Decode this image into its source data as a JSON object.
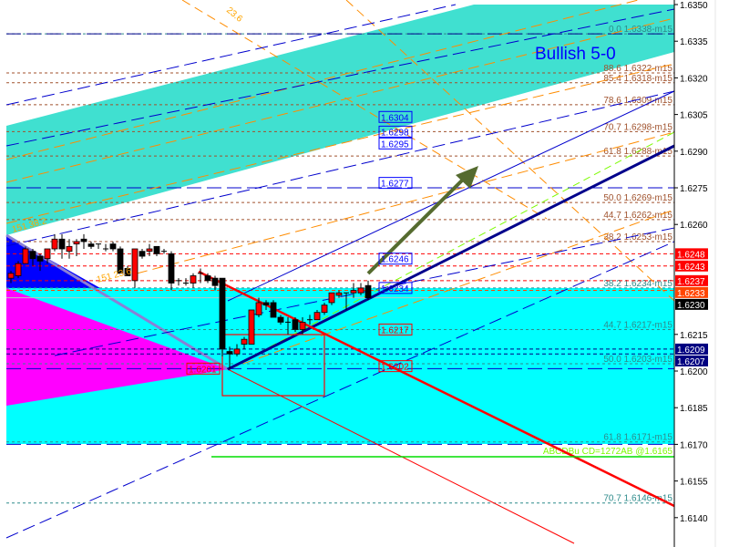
{
  "chart_data": {
    "type": "candlestick",
    "title": "Bullish 5-0",
    "ylim": [
      1.6132,
      1.6352
    ],
    "y_ticks": [
      "1.6350",
      "1.6335",
      "1.6320",
      "1.6305",
      "1.6290",
      "1.6275",
      "1.6260",
      "1.6215",
      "1.6200",
      "1.6185",
      "1.6170",
      "1.6155",
      "1.6140"
    ],
    "candles_ohlc": [
      [
        1.6238,
        1.6241,
        1.6236,
        1.624
      ],
      [
        1.6239,
        1.6245,
        1.6238,
        1.6244
      ],
      [
        1.6244,
        1.6251,
        1.6244,
        1.625
      ],
      [
        1.6249,
        1.625,
        1.6243,
        1.6246
      ],
      [
        1.6247,
        1.6248,
        1.6241,
        1.6245
      ],
      [
        1.6246,
        1.625,
        1.6244,
        1.625
      ],
      [
        1.625,
        1.6256,
        1.6249,
        1.6254
      ],
      [
        1.6254,
        1.6256,
        1.6246,
        1.625
      ],
      [
        1.6249,
        1.6254,
        1.6246,
        1.6251
      ],
      [
        1.6252,
        1.6254,
        1.6247,
        1.6253
      ],
      [
        1.6254,
        1.6256,
        1.625,
        1.6253
      ],
      [
        1.6252,
        1.6253,
        1.625,
        1.6251
      ],
      [
        1.6252,
        1.6252,
        1.625,
        1.6252
      ],
      [
        1.625,
        1.6252,
        1.6249,
        1.625
      ],
      [
        1.6252,
        1.6253,
        1.6249,
        1.625
      ],
      [
        1.625,
        1.6251,
        1.624,
        1.624
      ],
      [
        1.6242,
        1.6243,
        1.6239,
        1.6239
      ],
      [
        1.6237,
        1.625,
        1.6234,
        1.625
      ],
      [
        1.6249,
        1.625,
        1.6246,
        1.6247
      ],
      [
        1.6249,
        1.6252,
        1.6247,
        1.625
      ],
      [
        1.6251,
        1.6251,
        1.6247,
        1.6248
      ],
      [
        1.6249,
        1.625,
        1.6248,
        1.6249
      ],
      [
        1.6248,
        1.6249,
        1.6233,
        1.6236
      ],
      [
        1.6237,
        1.6238,
        1.6235,
        1.6237
      ],
      [
        1.6236,
        1.6238,
        1.6235,
        1.6236
      ],
      [
        1.6236,
        1.624,
        1.6234,
        1.6239
      ],
      [
        1.624,
        1.6242,
        1.6236,
        1.624
      ],
      [
        1.6239,
        1.624,
        1.6236,
        1.6237
      ],
      [
        1.6238,
        1.6239,
        1.6233,
        1.6235
      ],
      [
        1.6238,
        1.6238,
        1.6206,
        1.6209
      ],
      [
        1.6208,
        1.621,
        1.6201,
        1.6207
      ],
      [
        1.6207,
        1.6211,
        1.6206,
        1.6209
      ],
      [
        1.6211,
        1.6214,
        1.6209,
        1.6213
      ],
      [
        1.6211,
        1.6225,
        1.6211,
        1.6225
      ],
      [
        1.6223,
        1.623,
        1.6222,
        1.6228
      ],
      [
        1.6228,
        1.6229,
        1.6225,
        1.6227
      ],
      [
        1.6228,
        1.6229,
        1.6222,
        1.6222
      ],
      [
        1.6222,
        1.6223,
        1.6219,
        1.622
      ],
      [
        1.622,
        1.6222,
        1.6215,
        1.622
      ],
      [
        1.6221,
        1.6222,
        1.6216,
        1.6217
      ],
      [
        1.6217,
        1.6222,
        1.6215,
        1.622
      ],
      [
        1.6221,
        1.6223,
        1.6219,
        1.6221
      ],
      [
        1.6221,
        1.6225,
        1.6221,
        1.6224
      ],
      [
        1.6224,
        1.6228,
        1.6223,
        1.6227
      ],
      [
        1.6228,
        1.6232,
        1.6227,
        1.6232
      ],
      [
        1.6231,
        1.6233,
        1.623,
        1.6232
      ],
      [
        1.6232,
        1.6232,
        1.6225,
        1.6232
      ],
      [
        1.6232,
        1.6236,
        1.623,
        1.6233
      ],
      [
        1.6232,
        1.6236,
        1.6231,
        1.6234
      ],
      [
        1.6235,
        1.6237,
        1.6229,
        1.623
      ]
    ],
    "fib_levels": [
      {
        "price": 1.6338,
        "label": "0.0 1.6338-m15",
        "color": "#2e8b8b"
      },
      {
        "price": 1.6322,
        "label": "88.6 1.6322-m15",
        "color": "#a0522d"
      },
      {
        "price": 1.6318,
        "label": "85.4 1.6318-m15",
        "color": "#a0522d"
      },
      {
        "price": 1.6309,
        "label": "78.6 1.6309-m15",
        "color": "#a0522d"
      },
      {
        "price": 1.6298,
        "label": "70.7 1.6298-m15",
        "color": "#a0522d"
      },
      {
        "price": 1.6288,
        "label": "61.8 1.6288-m15",
        "color": "#a0522d"
      },
      {
        "price": 1.6269,
        "label": "50.0 1.6269-m15",
        "color": "#a0522d"
      },
      {
        "price": 1.6262,
        "label": "44.7 1.6262-m15",
        "color": "#a0522d"
      },
      {
        "price": 1.6253,
        "label": "38.2 1.6253-m15",
        "color": "#a0522d"
      },
      {
        "price": 1.6234,
        "label": "38.2 1.6234-m15",
        "color": "#2e8b8b"
      },
      {
        "price": 1.6217,
        "label": "44.7 1.6217-m15",
        "color": "#2e8b8b"
      },
      {
        "price": 1.6203,
        "label": "50.0 1.6203-m15",
        "color": "#2e8b8b"
      },
      {
        "price": 1.6171,
        "label": "61.8 1.6171-m15",
        "color": "#2e8b8b"
      },
      {
        "price": 1.6146,
        "label": "70.7 1.6146-m15",
        "color": "#2e8b8b"
      }
    ],
    "abcd_label": {
      "price": 1.6165,
      "text": "ABCDBu CD=1272AB   @1.6165",
      "color": "#7cfc00"
    },
    "price_tags": [
      {
        "price": 1.6248,
        "text": "1.6248",
        "bg": "#ff0000",
        "fg": "#ffffff"
      },
      {
        "price": 1.6243,
        "text": "1.6243",
        "bg": "#ff0000",
        "fg": "#ffffff"
      },
      {
        "price": 1.6237,
        "text": "1.6237",
        "bg": "#ff0000",
        "fg": "#ffffff"
      },
      {
        "price": 1.6233,
        "text": "1.6233",
        "bg": "#ff4500",
        "fg": "#ffffff"
      },
      {
        "price": 1.623,
        "text": "1.6230",
        "bg": "#000000",
        "fg": "#ffffff"
      },
      {
        "price": 1.6209,
        "text": "1.6209",
        "bg": "#000080",
        "fg": "#ffffff"
      },
      {
        "price": 1.6207,
        "text": "1.6207",
        "bg": "#000080",
        "fg": "#ffffff"
      }
    ],
    "boxed_labels": [
      {
        "price": 1.6304,
        "text": "1.6304",
        "color": "#0000ff"
      },
      {
        "price": 1.6298,
        "text": "1.6298",
        "color": "#0000ff"
      },
      {
        "price": 1.6295,
        "text": "1.6295",
        "color": "#0000ff"
      },
      {
        "price": 1.6277,
        "text": "1.6277",
        "color": "#0000ff"
      },
      {
        "price": 1.6246,
        "text": "1.6246",
        "color": "#0000ff"
      },
      {
        "price": 1.6234,
        "text": "1.6234",
        "color": "#0000ff"
      },
      {
        "price": 1.6217,
        "text": "1.6217",
        "color": "#ff0000"
      },
      {
        "price": 1.6202,
        "text": "1.6202",
        "color": "#ff0000"
      },
      {
        "price": 1.6201,
        "text": "1.6201",
        "color": "#ff0000"
      }
    ],
    "annotations": [
      "151 38.2",
      "151 23.6",
      "23.6"
    ],
    "colors": {
      "up": "#ff0000",
      "down": "#000000",
      "zone_upper": "#40e0d0",
      "zone_lower": "#00ffff",
      "zone_magenta": "#ff00ff",
      "zone_blue": "#0000ff",
      "trend": "#00008b",
      "arrow": "#556b2f"
    }
  }
}
